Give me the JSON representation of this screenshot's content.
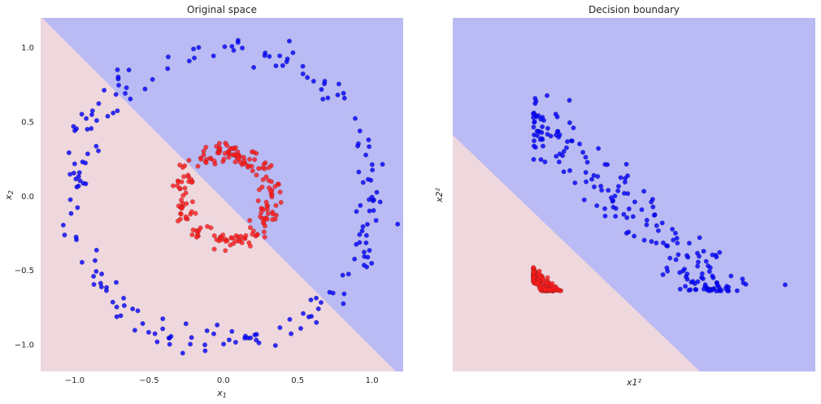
{
  "colors": {
    "blue_region": "#babbf4",
    "red_region": "#efd7de",
    "blue_points": "#0000ff",
    "red_points": "#ff1a1a"
  },
  "chart_data": [
    {
      "type": "scatter",
      "title": "Original space",
      "xlabel": "x1",
      "ylabel": "x2",
      "xlim": [
        -1.23,
        1.21
      ],
      "ylim": [
        -1.18,
        1.2
      ],
      "xticks": [
        -1.0,
        -0.5,
        0.0,
        0.5,
        1.0
      ],
      "yticks": [
        -1.0,
        -0.5,
        0.0,
        0.5,
        1.0
      ],
      "xtick_labels": [
        "−1.0",
        "−0.5",
        "0.0",
        "0.5",
        "1.0"
      ],
      "ytick_labels": [
        "−1.0",
        "−0.5",
        "0.0",
        "0.5",
        "1.0"
      ],
      "grid": false,
      "decision_boundary": {
        "equation": "x1 + x2 = c",
        "c": -0.02,
        "blue_side": "above"
      },
      "series": [
        {
          "name": "outer circle",
          "class": "blue",
          "center": [
            0,
            0
          ],
          "radius": 1.0,
          "noise_sd": 0.05,
          "n": 200,
          "seed": 7
        },
        {
          "name": "inner circle",
          "class": "red",
          "center": [
            0.02,
            0
          ],
          "radius": 0.3,
          "noise_sd": 0.035,
          "n": 200,
          "seed": 13
        }
      ]
    },
    {
      "type": "scatter",
      "title": "Decision boundary",
      "xlabel": "x1²",
      "ylabel": "x2²",
      "xlim": [
        -0.44,
        1.54
      ],
      "ylim": [
        -0.46,
        1.56
      ],
      "xticks": [],
      "yticks": [],
      "grid": false,
      "transform": "square of original coordinates",
      "decision_boundary": {
        "equation": "x1² + x2² = c",
        "c": 0.45,
        "blue_side": "above"
      }
    }
  ]
}
